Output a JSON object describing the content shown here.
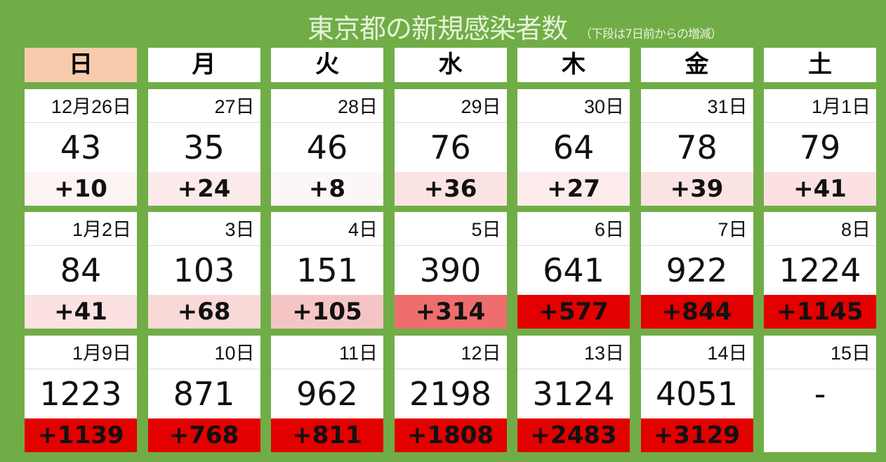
{
  "title": "東京都の新規感染者数",
  "subtitle": "（下段は7日前からの増減）",
  "weekdays": [
    "日",
    "月",
    "火",
    "水",
    "木",
    "金",
    "土"
  ],
  "colors": {
    "background": "#70ad47",
    "sunday_header": "#f8cbad",
    "high": "#e30000"
  },
  "weeks": [
    [
      {
        "date": "12月26日",
        "count": "43",
        "delta": "+10",
        "bg": "#fdf3f3"
      },
      {
        "date": "27日",
        "count": "35",
        "delta": "+24",
        "bg": "#fbeaea"
      },
      {
        "date": "28日",
        "count": "46",
        "delta": "+8",
        "bg": "#fdf6f6"
      },
      {
        "date": "29日",
        "count": "76",
        "delta": "+36",
        "bg": "#fbe3e3"
      },
      {
        "date": "30日",
        "count": "64",
        "delta": "+27",
        "bg": "#fcebeb"
      },
      {
        "date": "31日",
        "count": "78",
        "delta": "+39",
        "bg": "#fbe3e3"
      },
      {
        "date": "1月1日",
        "count": "79",
        "delta": "+41",
        "bg": "#fbe1e1"
      }
    ],
    [
      {
        "date": "1月2日",
        "count": "84",
        "delta": "+41",
        "bg": "#fbe1e1"
      },
      {
        "date": "3日",
        "count": "103",
        "delta": "+68",
        "bg": "#f9d8d8"
      },
      {
        "date": "4日",
        "count": "151",
        "delta": "+105",
        "bg": "#f5c5c5"
      },
      {
        "date": "5日",
        "count": "390",
        "delta": "+314",
        "bg": "#ee6e6e"
      },
      {
        "date": "6日",
        "count": "641",
        "delta": "+577",
        "bg": "#e30000"
      },
      {
        "date": "7日",
        "count": "922",
        "delta": "+844",
        "bg": "#e30000"
      },
      {
        "date": "8日",
        "count": "1224",
        "delta": "+1145",
        "bg": "#e30000"
      }
    ],
    [
      {
        "date": "1月9日",
        "count": "1223",
        "delta": "+1139",
        "bg": "#e30000"
      },
      {
        "date": "10日",
        "count": "871",
        "delta": "+768",
        "bg": "#e30000"
      },
      {
        "date": "11日",
        "count": "962",
        "delta": "+811",
        "bg": "#e30000"
      },
      {
        "date": "12日",
        "count": "2198",
        "delta": "+1808",
        "bg": "#e30000"
      },
      {
        "date": "13日",
        "count": "3124",
        "delta": "+2483",
        "bg": "#e30000"
      },
      {
        "date": "14日",
        "count": "4051",
        "delta": "+3129",
        "bg": "#e30000"
      },
      {
        "date": "15日",
        "count": "-",
        "delta": "",
        "bg": "#ffffff"
      }
    ]
  ]
}
